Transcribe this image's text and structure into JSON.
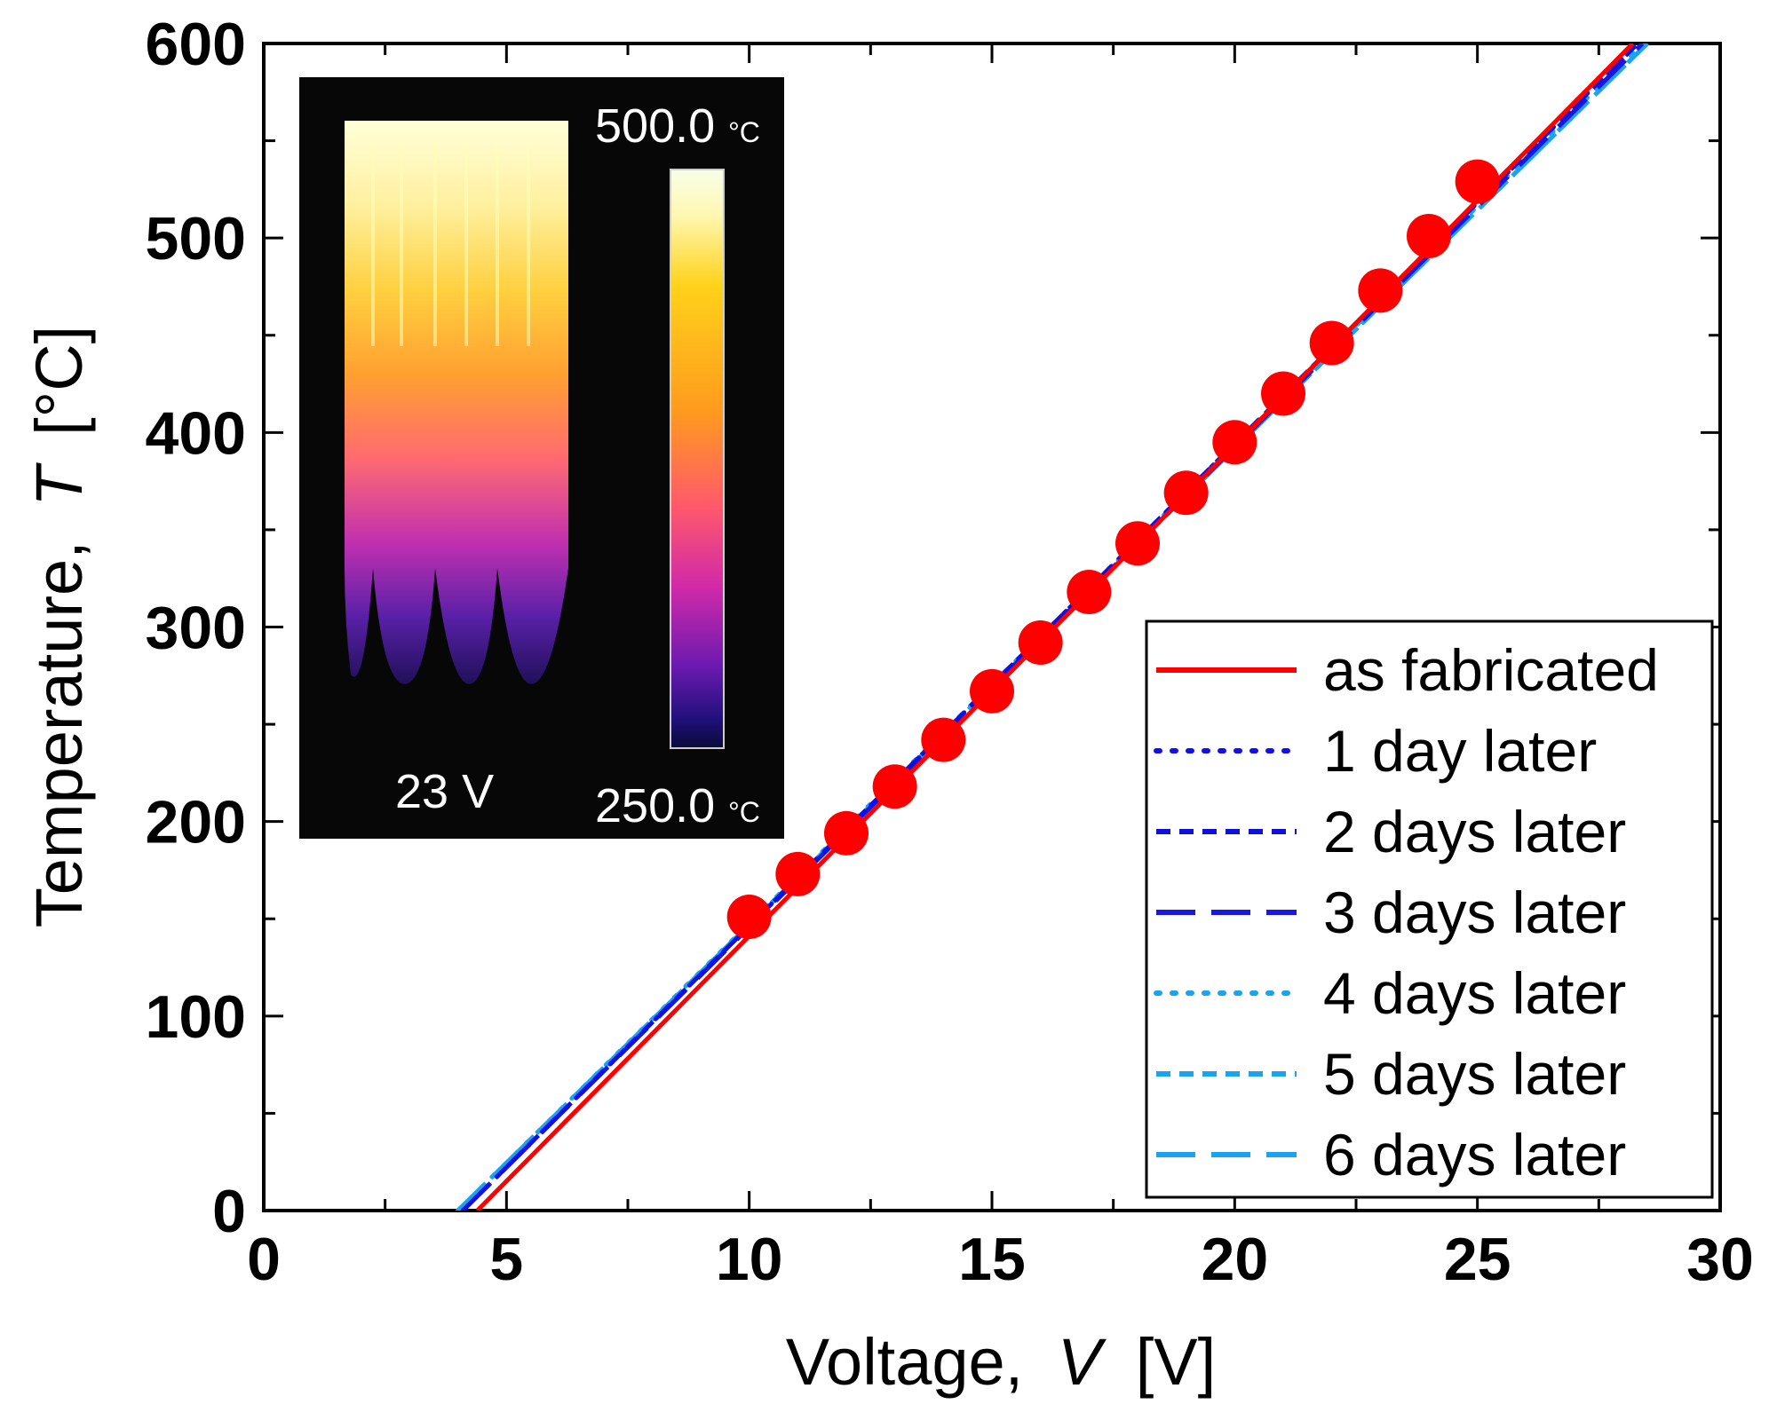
{
  "chart_data": {
    "type": "line",
    "xlabel": "Voltage,",
    "xlabel_var": "V",
    "xlabel_unit": "[V]",
    "ylabel": "Temperature,",
    "ylabel_var": "T",
    "ylabel_unit": "[°C]",
    "xlim": [
      0,
      30
    ],
    "ylim": [
      0,
      600
    ],
    "xticks": [
      0,
      5,
      10,
      15,
      20,
      25,
      30
    ],
    "yticks": [
      0,
      100,
      200,
      300,
      400,
      500,
      600
    ],
    "grid": false,
    "legend_position": "bottom-right",
    "markers": {
      "x": [
        10,
        11,
        12,
        13,
        14,
        15,
        16,
        17,
        18,
        19,
        20,
        21,
        22,
        23,
        24,
        25
      ],
      "y": [
        151,
        173,
        194,
        218,
        242,
        267,
        292,
        318,
        343,
        369,
        395,
        420,
        446,
        473,
        501,
        529
      ],
      "color": "#ff0000"
    },
    "series": [
      {
        "name": "as fabricated",
        "color": "#ff0000",
        "style": "solid",
        "x": [
          4.4,
          28.2
        ],
        "y": [
          0,
          600
        ]
      },
      {
        "name": "1 day later",
        "color": "#1010ee",
        "style": "dotted",
        "x": [
          4.1,
          28.3
        ],
        "y": [
          0,
          600
        ]
      },
      {
        "name": "2 days later",
        "color": "#1010dd",
        "style": "dashed-short",
        "x": [
          4.1,
          28.3
        ],
        "y": [
          0,
          600
        ]
      },
      {
        "name": "3 days later",
        "color": "#1818e0",
        "style": "dashed-long",
        "x": [
          4.1,
          28.4
        ],
        "y": [
          0,
          600
        ]
      },
      {
        "name": "4 days later",
        "color": "#1aa3ee",
        "style": "dotted",
        "x": [
          4.0,
          28.4
        ],
        "y": [
          0,
          600
        ]
      },
      {
        "name": "5 days later",
        "color": "#1aa3ee",
        "style": "dashed-short",
        "x": [
          4.0,
          28.5
        ],
        "y": [
          0,
          600
        ]
      },
      {
        "name": "6 days later",
        "color": "#1aa3ee",
        "style": "dashed-long",
        "x": [
          4.0,
          28.5
        ],
        "y": [
          0,
          600
        ]
      }
    ]
  },
  "inset": {
    "voltage_label": "23 V",
    "scale_max": "500.0",
    "scale_min": "250.0",
    "unit": "°C"
  }
}
